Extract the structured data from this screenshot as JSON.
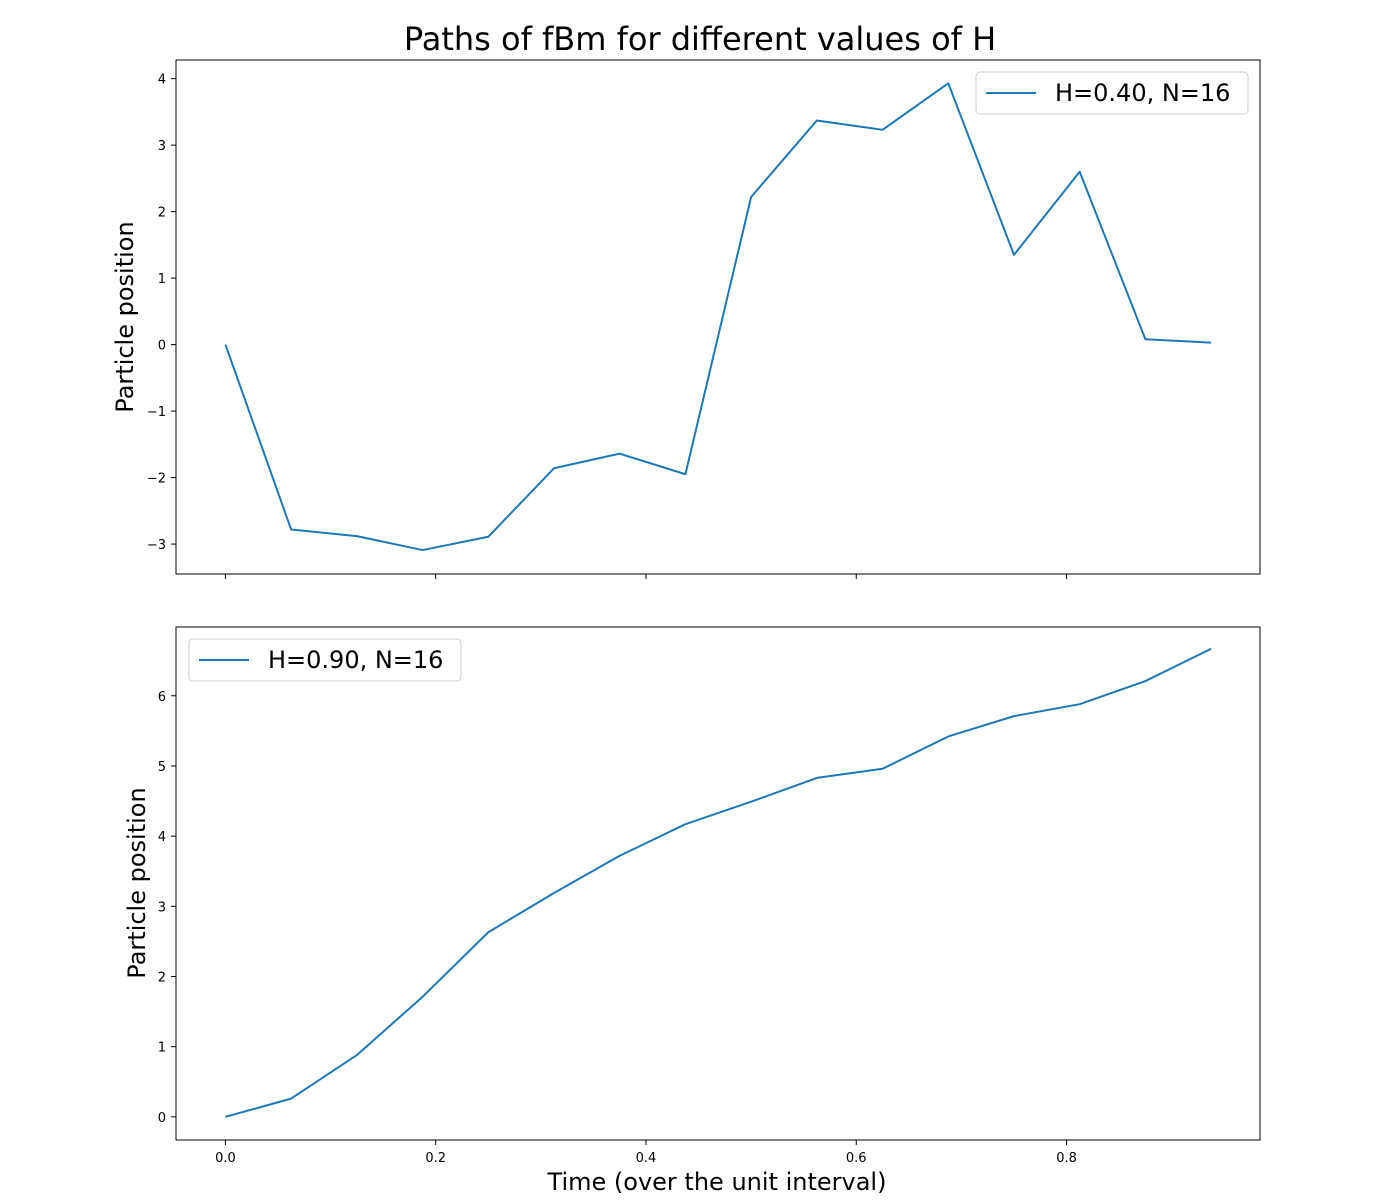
{
  "figure": {
    "title": "Paths of fBm for different values of H",
    "xlabel": "Time (over the unit interval)"
  },
  "chart_data": [
    {
      "type": "line",
      "ylabel": "Particle position",
      "xlim": [
        -0.047,
        0.984
      ],
      "ylim": [
        -3.45,
        4.28
      ],
      "x_ticks": [
        0.0,
        0.2,
        0.4,
        0.6,
        0.8
      ],
      "x_tick_labels": [
        "",
        "",
        "",
        "",
        ""
      ],
      "y_ticks": [
        -3,
        -2,
        -1,
        0,
        1,
        2,
        3,
        4
      ],
      "y_tick_labels": [
        "−3",
        "−2",
        "−1",
        "0",
        "1",
        "2",
        "3",
        "4"
      ],
      "legend": {
        "position": "top-right"
      },
      "series": [
        {
          "name": "H=0.40, N=16",
          "color": "#1f77b4",
          "x": [
            0.0,
            0.0625,
            0.125,
            0.1875,
            0.25,
            0.3125,
            0.375,
            0.4375,
            0.5,
            0.5625,
            0.625,
            0.6875,
            0.75,
            0.8125,
            0.875,
            0.9375
          ],
          "y": [
            0.0,
            -2.78,
            -2.88,
            -3.09,
            -2.89,
            -1.86,
            -1.64,
            -1.95,
            2.22,
            3.37,
            3.23,
            3.93,
            1.35,
            2.6,
            0.08,
            0.03
          ]
        }
      ]
    },
    {
      "type": "line",
      "ylabel": "Particle position",
      "xlim": [
        -0.047,
        0.984
      ],
      "ylim": [
        -0.33,
        6.98
      ],
      "x_ticks": [
        0.0,
        0.2,
        0.4,
        0.6,
        0.8
      ],
      "x_tick_labels": [
        "0.0",
        "0.2",
        "0.4",
        "0.6",
        "0.8"
      ],
      "y_ticks": [
        0,
        1,
        2,
        3,
        4,
        5,
        6
      ],
      "y_tick_labels": [
        "0",
        "1",
        "2",
        "3",
        "4",
        "5",
        "6"
      ],
      "legend": {
        "position": "top-left"
      },
      "series": [
        {
          "name": "H=0.90, N=16",
          "color": "#1f77b4",
          "x": [
            0.0,
            0.0625,
            0.125,
            0.1875,
            0.25,
            0.3125,
            0.375,
            0.4375,
            0.5,
            0.5625,
            0.625,
            0.6875,
            0.75,
            0.8125,
            0.875,
            0.9375
          ],
          "y": [
            0.0,
            0.26,
            0.88,
            1.71,
            2.63,
            3.19,
            3.72,
            4.17,
            4.49,
            4.83,
            4.96,
            5.42,
            5.71,
            5.88,
            6.21,
            6.67
          ]
        }
      ]
    }
  ]
}
